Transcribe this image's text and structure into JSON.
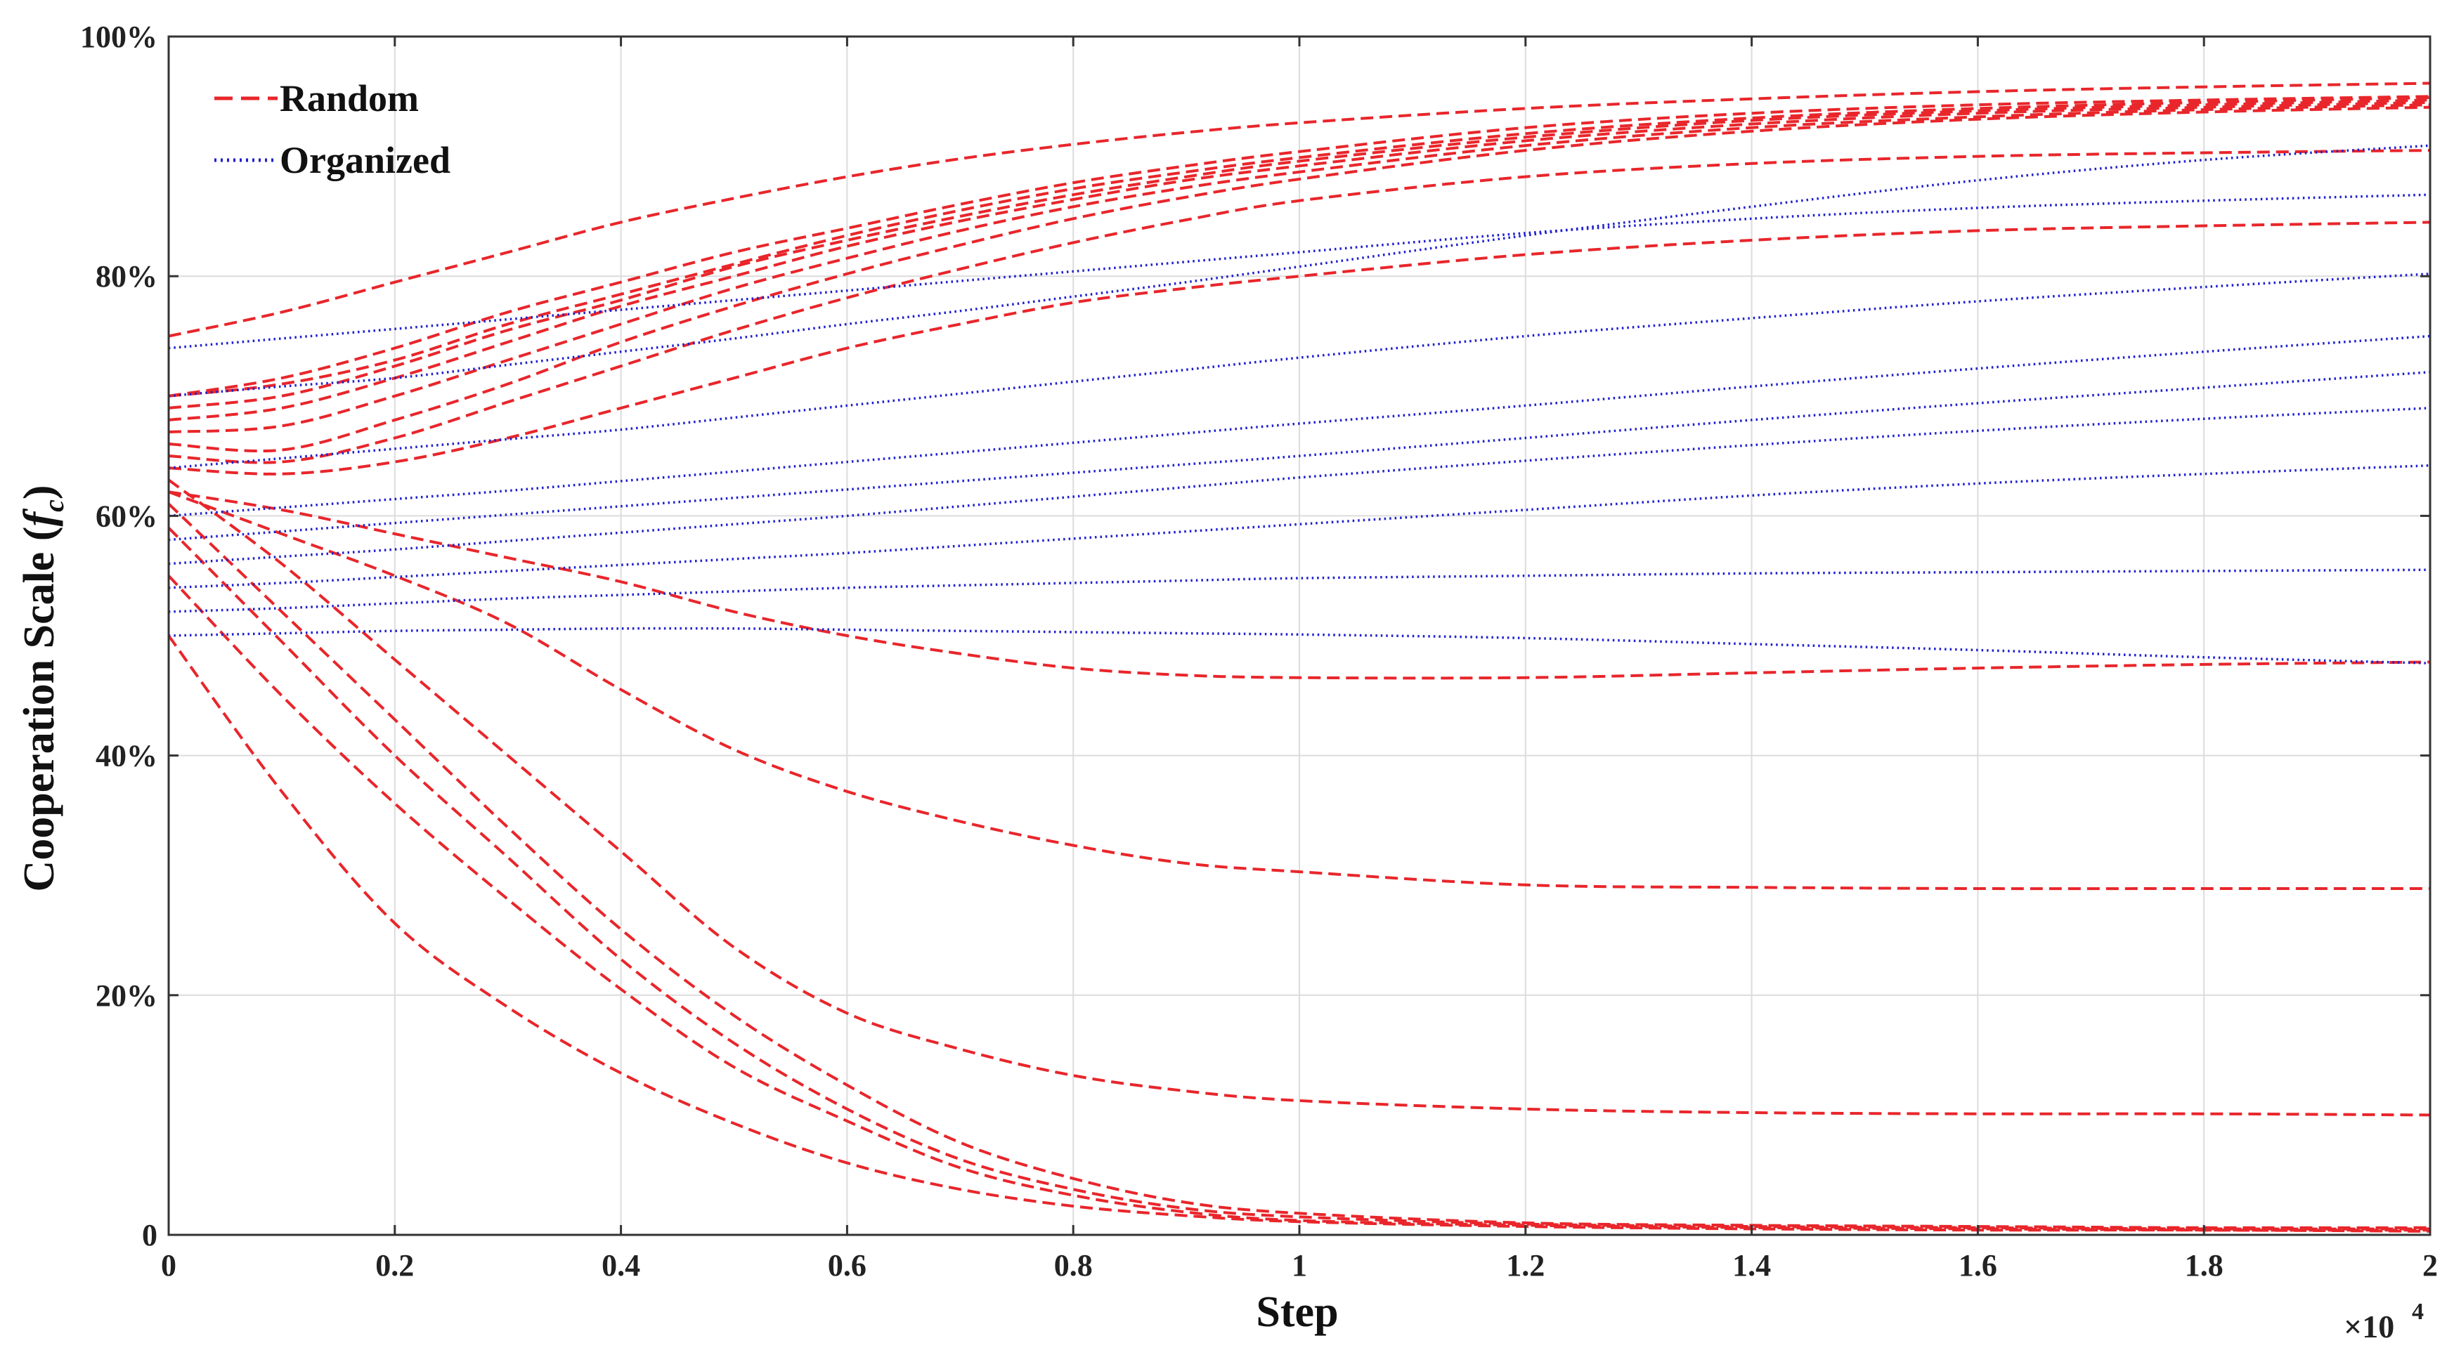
{
  "chart_data": {
    "type": "line",
    "xlabel": "Step",
    "ylabel_main": "Cooperation Scale (",
    "ylabel_var": "f",
    "ylabel_sub": "c",
    "ylabel_close": ")",
    "x_exponent_base": "×10",
    "x_exponent_power": "4",
    "xlim": [
      0,
      20000
    ],
    "ylim": [
      0,
      100
    ],
    "grid": true,
    "legend_position": "top-left",
    "x_ticks": [
      0,
      2000,
      4000,
      6000,
      8000,
      10000,
      12000,
      14000,
      16000,
      18000,
      20000
    ],
    "x_tick_labels": [
      "0",
      "0.2",
      "0.4",
      "0.6",
      "0.8",
      "1",
      "1.2",
      "1.4",
      "1.6",
      "1.8",
      "2"
    ],
    "y_ticks": [
      0,
      20,
      40,
      60,
      80,
      100
    ],
    "y_tick_labels": [
      "0",
      "20%",
      "40%",
      "60%",
      "80%",
      "100%"
    ],
    "colors": {
      "random": "#e8262b",
      "organized": "#1f1fd0",
      "grid": "#dcdcdc",
      "axis": "#333333"
    },
    "legend": [
      {
        "name": "Random",
        "style": "dashed",
        "color": "#e8262b"
      },
      {
        "name": "Organized",
        "style": "dotted",
        "color": "#1f1fd0"
      }
    ],
    "x": [
      0,
      1000,
      2000,
      3000,
      4000,
      5000,
      6000,
      7000,
      8000,
      9000,
      10000,
      12000,
      14000,
      16000,
      18000,
      20000
    ],
    "series": [
      {
        "group": "Random",
        "values": [
          75,
          77,
          79.5,
          82,
          84.5,
          86.5,
          88.3,
          89.8,
          91,
          92,
          92.8,
          94,
          94.8,
          95.4,
          95.8,
          96.1
        ]
      },
      {
        "group": "Random",
        "values": [
          70,
          71.5,
          74,
          77,
          79.5,
          82,
          84,
          86,
          87.8,
          89.2,
          90.4,
          92.4,
          93.6,
          94.3,
          94.7,
          95
        ]
      },
      {
        "group": "Random",
        "values": [
          70,
          71,
          73,
          76,
          78.5,
          81,
          83.4,
          85.5,
          87.3,
          88.7,
          89.9,
          91.9,
          93.2,
          94,
          94.5,
          94.9
        ]
      },
      {
        "group": "Random",
        "values": [
          69,
          70,
          72.5,
          75.5,
          78,
          80.8,
          83,
          85,
          86.8,
          88.3,
          89.6,
          91.6,
          93,
          93.8,
          94.3,
          94.7
        ]
      },
      {
        "group": "Random",
        "values": [
          68,
          69,
          71.5,
          74.5,
          77.5,
          80,
          82.5,
          84.6,
          86.4,
          88,
          89.2,
          91.3,
          92.7,
          93.6,
          94.1,
          94.5
        ]
      },
      {
        "group": "Random",
        "values": [
          67,
          67.5,
          70,
          73,
          76,
          79,
          81.5,
          83.8,
          85.8,
          87.4,
          88.7,
          90.9,
          92.4,
          93.3,
          93.9,
          94.3
        ]
      },
      {
        "group": "Random",
        "values": [
          66,
          65.5,
          68,
          71,
          74.5,
          77.5,
          80.2,
          82.6,
          84.8,
          86.6,
          88.1,
          90.5,
          92.1,
          93.1,
          93.7,
          94.1
        ]
      },
      {
        "group": "Random",
        "values": [
          65,
          64.5,
          66.5,
          69.5,
          72.5,
          75.5,
          78.2,
          80.6,
          82.8,
          84.7,
          86.3,
          88.3,
          89.4,
          90,
          90.3,
          90.5
        ]
      },
      {
        "group": "Random",
        "values": [
          64,
          63.5,
          64.5,
          66.5,
          69,
          71.5,
          74,
          76,
          77.8,
          79,
          80,
          81.8,
          83,
          83.8,
          84.2,
          84.5
        ]
      },
      {
        "group": "Random",
        "values": [
          62,
          60.5,
          58.5,
          56.5,
          54.5,
          52,
          50,
          48.5,
          47.3,
          46.7,
          46.5,
          46.5,
          46.9,
          47.3,
          47.6,
          47.8
        ]
      },
      {
        "group": "Random",
        "values": [
          62,
          58.5,
          55,
          51,
          45.5,
          40.5,
          37,
          34.5,
          32.5,
          31,
          30.3,
          29.2,
          29,
          28.9,
          28.9,
          28.9
        ]
      },
      {
        "group": "Random",
        "values": [
          63,
          56,
          48,
          40,
          32,
          24,
          18.5,
          15.5,
          13.3,
          12,
          11.2,
          10.5,
          10.2,
          10.1,
          10.1,
          10
        ]
      },
      {
        "group": "Random",
        "values": [
          61,
          52,
          43,
          34,
          25.5,
          18.3,
          12.5,
          7.7,
          4.7,
          2.7,
          1.8,
          1,
          0.8,
          0.7,
          0.6,
          0.6
        ]
      },
      {
        "group": "Random",
        "values": [
          59,
          49.5,
          40,
          31.5,
          23,
          16,
          10.5,
          6.3,
          3.8,
          2.2,
          1.5,
          0.9,
          0.7,
          0.6,
          0.5,
          0.5
        ]
      },
      {
        "group": "Random",
        "values": [
          55,
          45,
          36,
          28,
          20.5,
          14,
          9.5,
          5.6,
          3.3,
          1.9,
          1.2,
          0.8,
          0.6,
          0.5,
          0.4,
          0.4
        ]
      },
      {
        "group": "Random",
        "values": [
          50,
          37,
          26,
          19,
          13.5,
          9.3,
          6,
          3.8,
          2.4,
          1.6,
          1.1,
          0.7,
          0.5,
          0.4,
          0.4,
          0.3
        ]
      },
      {
        "group": "Organized",
        "values": [
          70,
          70.8,
          71.5,
          72.6,
          73.7,
          74.8,
          76,
          77.1,
          78.3,
          79.5,
          80.8,
          83.4,
          85.8,
          88,
          89.7,
          90.9
        ]
      },
      {
        "group": "Organized",
        "values": [
          74,
          74.8,
          75.6,
          76.4,
          77.2,
          78,
          78.8,
          79.6,
          80.4,
          81.2,
          82,
          83.6,
          84.8,
          85.7,
          86.3,
          86.8
        ]
      },
      {
        "group": "Organized",
        "values": [
          64,
          64.8,
          65.6,
          66.4,
          67.2,
          68.2,
          69.2,
          70.2,
          71.2,
          72.2,
          73.2,
          75,
          76.5,
          77.9,
          79.1,
          80.2
        ]
      },
      {
        "group": "Organized",
        "values": [
          60,
          60.7,
          61.4,
          62.1,
          62.9,
          63.7,
          64.5,
          65.3,
          66.1,
          66.9,
          67.7,
          69.2,
          70.8,
          72.3,
          73.7,
          75
        ]
      },
      {
        "group": "Organized",
        "values": [
          58,
          58.7,
          59.4,
          60.1,
          60.8,
          61.5,
          62.2,
          62.9,
          63.6,
          64.3,
          65,
          66.5,
          68,
          69.4,
          70.7,
          72
        ]
      },
      {
        "group": "Organized",
        "values": [
          56,
          56.6,
          57.2,
          57.9,
          58.6,
          59.3,
          60,
          60.8,
          61.6,
          62.4,
          63.2,
          64.6,
          65.9,
          67.1,
          68.1,
          69
        ]
      },
      {
        "group": "Organized",
        "values": [
          54,
          54.4,
          54.9,
          55.4,
          55.9,
          56.4,
          56.9,
          57.5,
          58.1,
          58.7,
          59.3,
          60.5,
          61.7,
          62.7,
          63.5,
          64.2
        ]
      },
      {
        "group": "Organized",
        "values": [
          52,
          52.3,
          52.7,
          53.1,
          53.4,
          53.7,
          54,
          54.2,
          54.4,
          54.6,
          54.8,
          55,
          55.2,
          55.3,
          55.4,
          55.5
        ]
      },
      {
        "group": "Organized",
        "values": [
          50,
          50.2,
          50.4,
          50.5,
          50.6,
          50.6,
          50.5,
          50.4,
          50.3,
          50.2,
          50.1,
          49.8,
          49.3,
          48.8,
          48.2,
          47.7
        ]
      }
    ]
  }
}
